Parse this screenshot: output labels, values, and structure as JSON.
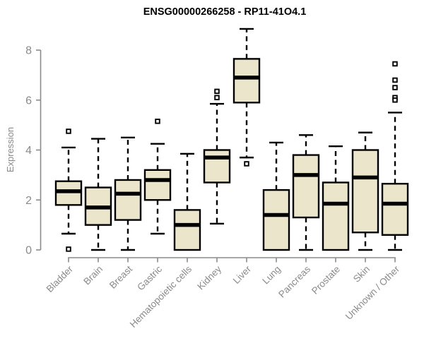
{
  "title": "ENSG00000266258 - RP11-41O4.1",
  "colors": {
    "box_fill": "#EBE5CB",
    "box_stroke": "#000000",
    "median": "#000000",
    "whisker": "#000000",
    "outlier_fill": "#FFFFFF",
    "axis": "#8A8A8A",
    "title": "#000000",
    "background": "#FFFFFF"
  },
  "chart_data": {
    "type": "boxplot",
    "title": "ENSG00000266258 - RP11-41O4.1",
    "xlabel": "",
    "ylabel": "Expression",
    "ylim": [
      0,
      9
    ],
    "yticks": [
      0,
      2,
      4,
      6,
      8
    ],
    "grid": false,
    "legend": false,
    "categories": [
      "Bladder",
      "Brain",
      "Breast",
      "Gastric",
      "Hematopoietic cells",
      "Kidney",
      "Liver",
      "Lung",
      "Pancreas",
      "Prostate",
      "Skin",
      "Unknown / Other"
    ],
    "series": [
      {
        "category": "Bladder",
        "whisker_low": 0.65,
        "q1": 1.8,
        "median": 2.35,
        "q3": 2.75,
        "whisker_high": 4.1,
        "outliers": [
          4.75,
          0.03
        ]
      },
      {
        "category": "Brain",
        "whisker_low": 0.0,
        "q1": 1.0,
        "median": 1.7,
        "q3": 2.5,
        "whisker_high": 4.45,
        "outliers": []
      },
      {
        "category": "Breast",
        "whisker_low": 0.0,
        "q1": 1.2,
        "median": 2.25,
        "q3": 2.8,
        "whisker_high": 4.5,
        "outliers": []
      },
      {
        "category": "Gastric",
        "whisker_low": 0.65,
        "q1": 2.0,
        "median": 2.8,
        "q3": 3.2,
        "whisker_high": 4.25,
        "outliers": [
          5.15
        ]
      },
      {
        "category": "Hematopoietic cells",
        "whisker_low": 0.0,
        "q1": 0.0,
        "median": 1.0,
        "q3": 1.6,
        "whisker_high": 3.85,
        "outliers": []
      },
      {
        "category": "Kidney",
        "whisker_low": 1.05,
        "q1": 2.7,
        "median": 3.7,
        "q3": 4.0,
        "whisker_high": 5.85,
        "outliers": [
          6.35,
          6.1
        ]
      },
      {
        "category": "Liver",
        "whisker_low": 3.7,
        "q1": 5.9,
        "median": 6.9,
        "q3": 7.65,
        "whisker_high": 8.85,
        "outliers": [
          3.45
        ]
      },
      {
        "category": "Lung",
        "whisker_low": 0.0,
        "q1": 0.0,
        "median": 1.4,
        "q3": 2.4,
        "whisker_high": 4.3,
        "outliers": []
      },
      {
        "category": "Pancreas",
        "whisker_low": 0.0,
        "q1": 1.3,
        "median": 3.0,
        "q3": 3.8,
        "whisker_high": 4.6,
        "outliers": []
      },
      {
        "category": "Prostate",
        "whisker_low": 0.0,
        "q1": 0.0,
        "median": 1.85,
        "q3": 2.7,
        "whisker_high": 4.15,
        "outliers": []
      },
      {
        "category": "Skin",
        "whisker_low": 0.0,
        "q1": 0.7,
        "median": 2.9,
        "q3": 4.0,
        "whisker_high": 4.7,
        "outliers": []
      },
      {
        "category": "Unknown / Other",
        "whisker_low": 0.0,
        "q1": 0.6,
        "median": 1.85,
        "q3": 2.65,
        "whisker_high": 5.5,
        "outliers": [
          7.45,
          6.8,
          6.5,
          6.1,
          6.0
        ]
      }
    ]
  }
}
